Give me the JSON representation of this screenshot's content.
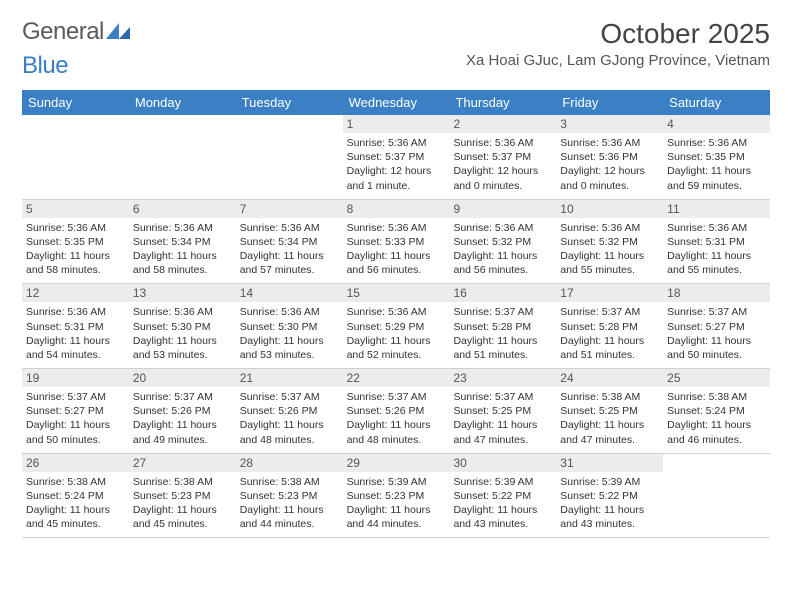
{
  "logo": {
    "text1": "General",
    "text2": "Blue"
  },
  "title": "October 2025",
  "location": "Xa Hoai GJuc, Lam GJong Province, Vietnam",
  "weekdays": [
    "Sunday",
    "Monday",
    "Tuesday",
    "Wednesday",
    "Thursday",
    "Friday",
    "Saturday"
  ],
  "colors": {
    "header_bg": "#3b7fc4",
    "header_text": "#ffffff",
    "daynum_bg": "#ececec",
    "body_text": "#333333",
    "logo_gray": "#5a5a5a"
  },
  "typography": {
    "month_title_size": 28,
    "location_size": 15,
    "weekday_size": 13,
    "daynum_size": 12,
    "body_size": 10.5
  },
  "weeks": [
    [
      {
        "n": "",
        "sr": "",
        "ss": "",
        "d1": "",
        "d2": ""
      },
      {
        "n": "",
        "sr": "",
        "ss": "",
        "d1": "",
        "d2": ""
      },
      {
        "n": "",
        "sr": "",
        "ss": "",
        "d1": "",
        "d2": ""
      },
      {
        "n": "1",
        "sr": "Sunrise: 5:36 AM",
        "ss": "Sunset: 5:37 PM",
        "d1": "Daylight: 12 hours",
        "d2": "and 1 minute."
      },
      {
        "n": "2",
        "sr": "Sunrise: 5:36 AM",
        "ss": "Sunset: 5:37 PM",
        "d1": "Daylight: 12 hours",
        "d2": "and 0 minutes."
      },
      {
        "n": "3",
        "sr": "Sunrise: 5:36 AM",
        "ss": "Sunset: 5:36 PM",
        "d1": "Daylight: 12 hours",
        "d2": "and 0 minutes."
      },
      {
        "n": "4",
        "sr": "Sunrise: 5:36 AM",
        "ss": "Sunset: 5:35 PM",
        "d1": "Daylight: 11 hours",
        "d2": "and 59 minutes."
      }
    ],
    [
      {
        "n": "5",
        "sr": "Sunrise: 5:36 AM",
        "ss": "Sunset: 5:35 PM",
        "d1": "Daylight: 11 hours",
        "d2": "and 58 minutes."
      },
      {
        "n": "6",
        "sr": "Sunrise: 5:36 AM",
        "ss": "Sunset: 5:34 PM",
        "d1": "Daylight: 11 hours",
        "d2": "and 58 minutes."
      },
      {
        "n": "7",
        "sr": "Sunrise: 5:36 AM",
        "ss": "Sunset: 5:34 PM",
        "d1": "Daylight: 11 hours",
        "d2": "and 57 minutes."
      },
      {
        "n": "8",
        "sr": "Sunrise: 5:36 AM",
        "ss": "Sunset: 5:33 PM",
        "d1": "Daylight: 11 hours",
        "d2": "and 56 minutes."
      },
      {
        "n": "9",
        "sr": "Sunrise: 5:36 AM",
        "ss": "Sunset: 5:32 PM",
        "d1": "Daylight: 11 hours",
        "d2": "and 56 minutes."
      },
      {
        "n": "10",
        "sr": "Sunrise: 5:36 AM",
        "ss": "Sunset: 5:32 PM",
        "d1": "Daylight: 11 hours",
        "d2": "and 55 minutes."
      },
      {
        "n": "11",
        "sr": "Sunrise: 5:36 AM",
        "ss": "Sunset: 5:31 PM",
        "d1": "Daylight: 11 hours",
        "d2": "and 55 minutes."
      }
    ],
    [
      {
        "n": "12",
        "sr": "Sunrise: 5:36 AM",
        "ss": "Sunset: 5:31 PM",
        "d1": "Daylight: 11 hours",
        "d2": "and 54 minutes."
      },
      {
        "n": "13",
        "sr": "Sunrise: 5:36 AM",
        "ss": "Sunset: 5:30 PM",
        "d1": "Daylight: 11 hours",
        "d2": "and 53 minutes."
      },
      {
        "n": "14",
        "sr": "Sunrise: 5:36 AM",
        "ss": "Sunset: 5:30 PM",
        "d1": "Daylight: 11 hours",
        "d2": "and 53 minutes."
      },
      {
        "n": "15",
        "sr": "Sunrise: 5:36 AM",
        "ss": "Sunset: 5:29 PM",
        "d1": "Daylight: 11 hours",
        "d2": "and 52 minutes."
      },
      {
        "n": "16",
        "sr": "Sunrise: 5:37 AM",
        "ss": "Sunset: 5:28 PM",
        "d1": "Daylight: 11 hours",
        "d2": "and 51 minutes."
      },
      {
        "n": "17",
        "sr": "Sunrise: 5:37 AM",
        "ss": "Sunset: 5:28 PM",
        "d1": "Daylight: 11 hours",
        "d2": "and 51 minutes."
      },
      {
        "n": "18",
        "sr": "Sunrise: 5:37 AM",
        "ss": "Sunset: 5:27 PM",
        "d1": "Daylight: 11 hours",
        "d2": "and 50 minutes."
      }
    ],
    [
      {
        "n": "19",
        "sr": "Sunrise: 5:37 AM",
        "ss": "Sunset: 5:27 PM",
        "d1": "Daylight: 11 hours",
        "d2": "and 50 minutes."
      },
      {
        "n": "20",
        "sr": "Sunrise: 5:37 AM",
        "ss": "Sunset: 5:26 PM",
        "d1": "Daylight: 11 hours",
        "d2": "and 49 minutes."
      },
      {
        "n": "21",
        "sr": "Sunrise: 5:37 AM",
        "ss": "Sunset: 5:26 PM",
        "d1": "Daylight: 11 hours",
        "d2": "and 48 minutes."
      },
      {
        "n": "22",
        "sr": "Sunrise: 5:37 AM",
        "ss": "Sunset: 5:26 PM",
        "d1": "Daylight: 11 hours",
        "d2": "and 48 minutes."
      },
      {
        "n": "23",
        "sr": "Sunrise: 5:37 AM",
        "ss": "Sunset: 5:25 PM",
        "d1": "Daylight: 11 hours",
        "d2": "and 47 minutes."
      },
      {
        "n": "24",
        "sr": "Sunrise: 5:38 AM",
        "ss": "Sunset: 5:25 PM",
        "d1": "Daylight: 11 hours",
        "d2": "and 47 minutes."
      },
      {
        "n": "25",
        "sr": "Sunrise: 5:38 AM",
        "ss": "Sunset: 5:24 PM",
        "d1": "Daylight: 11 hours",
        "d2": "and 46 minutes."
      }
    ],
    [
      {
        "n": "26",
        "sr": "Sunrise: 5:38 AM",
        "ss": "Sunset: 5:24 PM",
        "d1": "Daylight: 11 hours",
        "d2": "and 45 minutes."
      },
      {
        "n": "27",
        "sr": "Sunrise: 5:38 AM",
        "ss": "Sunset: 5:23 PM",
        "d1": "Daylight: 11 hours",
        "d2": "and 45 minutes."
      },
      {
        "n": "28",
        "sr": "Sunrise: 5:38 AM",
        "ss": "Sunset: 5:23 PM",
        "d1": "Daylight: 11 hours",
        "d2": "and 44 minutes."
      },
      {
        "n": "29",
        "sr": "Sunrise: 5:39 AM",
        "ss": "Sunset: 5:23 PM",
        "d1": "Daylight: 11 hours",
        "d2": "and 44 minutes."
      },
      {
        "n": "30",
        "sr": "Sunrise: 5:39 AM",
        "ss": "Sunset: 5:22 PM",
        "d1": "Daylight: 11 hours",
        "d2": "and 43 minutes."
      },
      {
        "n": "31",
        "sr": "Sunrise: 5:39 AM",
        "ss": "Sunset: 5:22 PM",
        "d1": "Daylight: 11 hours",
        "d2": "and 43 minutes."
      },
      {
        "n": "",
        "sr": "",
        "ss": "",
        "d1": "",
        "d2": ""
      }
    ]
  ]
}
